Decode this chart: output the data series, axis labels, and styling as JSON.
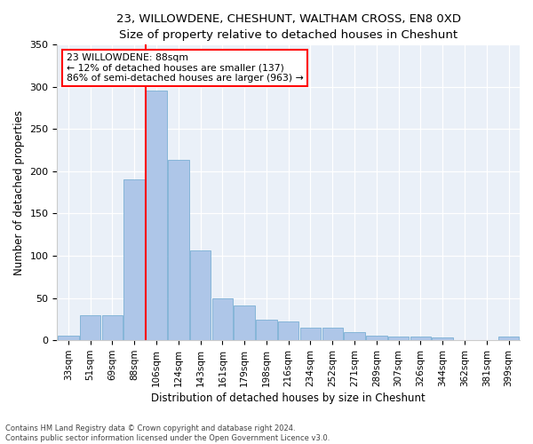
{
  "title1": "23, WILLOWDENE, CHESHUNT, WALTHAM CROSS, EN8 0XD",
  "title2": "Size of property relative to detached houses in Cheshunt",
  "xlabel": "Distribution of detached houses by size in Cheshunt",
  "ylabel": "Number of detached properties",
  "categories": [
    "33sqm",
    "51sqm",
    "69sqm",
    "88sqm",
    "106sqm",
    "124sqm",
    "143sqm",
    "161sqm",
    "179sqm",
    "198sqm",
    "216sqm",
    "234sqm",
    "252sqm",
    "271sqm",
    "289sqm",
    "307sqm",
    "326sqm",
    "344sqm",
    "362sqm",
    "381sqm",
    "399sqm"
  ],
  "values": [
    5,
    30,
    30,
    190,
    295,
    213,
    106,
    50,
    41,
    24,
    22,
    15,
    15,
    10,
    5,
    4,
    4,
    3,
    0,
    0,
    4
  ],
  "bar_color": "#aec6e8",
  "bar_edge_color": "#7aafd4",
  "line_x_index": 3,
  "annotation_line1": "23 WILLOWDENE: 88sqm",
  "annotation_line2": "← 12% of detached houses are smaller (137)",
  "annotation_line3": "86% of semi-detached houses are larger (963) →",
  "vline_color": "red",
  "annotation_box_color": "white",
  "annotation_box_edge": "red",
  "footer1": "Contains HM Land Registry data © Crown copyright and database right 2024.",
  "footer2": "Contains public sector information licensed under the Open Government Licence v3.0.",
  "bg_color": "#eaf0f8",
  "ylim": [
    0,
    350
  ],
  "yticks": [
    0,
    50,
    100,
    150,
    200,
    250,
    300,
    350
  ],
  "title1_fontsize": 9.5,
  "title2_fontsize": 9.0
}
